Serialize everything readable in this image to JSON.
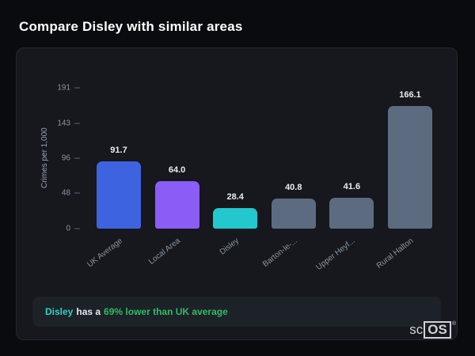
{
  "page": {
    "title": "Compare Disley with similar areas"
  },
  "chart_data": {
    "type": "bar",
    "categories": [
      "UK Average",
      "Local Area",
      "Disley",
      "Barton-le-...",
      "Upper Heyf...",
      "Rural Halton"
    ],
    "values": [
      91.7,
      64.0,
      28.4,
      40.8,
      41.6,
      166.1
    ],
    "value_labels": [
      "91.7",
      "64.0",
      "28.4",
      "40.8",
      "41.6",
      "166.1"
    ],
    "bar_colors": [
      "#3e63e0",
      "#8b5cf6",
      "#22c8ce",
      "#5c6b80",
      "#5c6b80",
      "#5c6b80"
    ],
    "title": "",
    "xlabel": "",
    "ylabel": "Crimes per 1,000",
    "yticks": [
      0,
      48,
      96,
      143,
      191
    ],
    "ylim": [
      0,
      191
    ],
    "grid": false,
    "legend": false
  },
  "note": {
    "area": "Disley",
    "middle": "has a",
    "highlight": "69% lower than UK average",
    "area_color": "#2cd5c4",
    "highlight_color": "#2dbe60"
  },
  "logo": {
    "prefix": "sc",
    "boxed": "OS",
    "registered": "®"
  }
}
